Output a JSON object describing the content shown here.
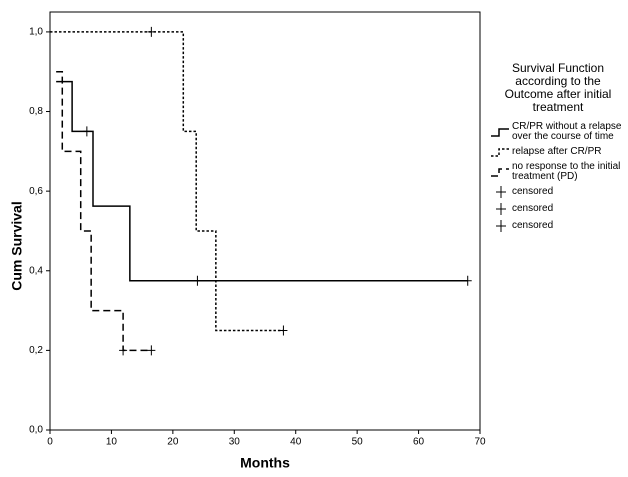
{
  "chart_data": {
    "type": "step",
    "title": "Survival Function according to the Outcome after initial treatment",
    "x_label": "Months",
    "y_label": "Cum Survival",
    "xlim": [
      0,
      70
    ],
    "ylim": [
      0,
      1.05
    ],
    "xticks": [
      0,
      10,
      20,
      30,
      40,
      50,
      60,
      70
    ],
    "yticks": [
      {
        "value": 0,
        "label": "0,0"
      },
      {
        "value": 0.2,
        "label": "0,2"
      },
      {
        "value": 0.4,
        "label": "0,4"
      },
      {
        "value": 0.6,
        "label": "0,6"
      },
      {
        "value": 0.8,
        "label": "0,8"
      },
      {
        "value": 1.0,
        "label": "1,0"
      }
    ],
    "series": [
      {
        "name": "CR/PR without a relapse over the course of time",
        "color": "#000000",
        "dash": "solid",
        "x": [
          1,
          3.6,
          7,
          13,
          68
        ],
        "values": [
          0.875,
          0.75,
          0.5625,
          0.375,
          0.375
        ],
        "censored_x": [
          6,
          24,
          68
        ],
        "censored_values": [
          0.75,
          0.375,
          0.375
        ],
        "censor_label": "censored"
      },
      {
        "name": "relapse after CR/PR",
        "color": "#000000",
        "dash": "dotted",
        "x": [
          0,
          21.7,
          23.8,
          27,
          38
        ],
        "values": [
          1.0,
          0.75,
          0.5,
          0.25,
          0.25
        ],
        "censored_x": [
          16.5,
          38
        ],
        "censored_values": [
          1.0,
          0.25
        ],
        "censor_label": "censored"
      },
      {
        "name": "no response to the initial treatment (PD)",
        "color": "#000000",
        "dash": "dashed",
        "x": [
          1,
          2,
          5,
          6.7,
          11.9,
          16.5
        ],
        "values": [
          0.9,
          0.7,
          0.5,
          0.3,
          0.2,
          0.2
        ],
        "censored_x": [
          11.9,
          16.5
        ],
        "censored_values": [
          0.2,
          0.2
        ],
        "censor_label": "censored"
      }
    ]
  }
}
